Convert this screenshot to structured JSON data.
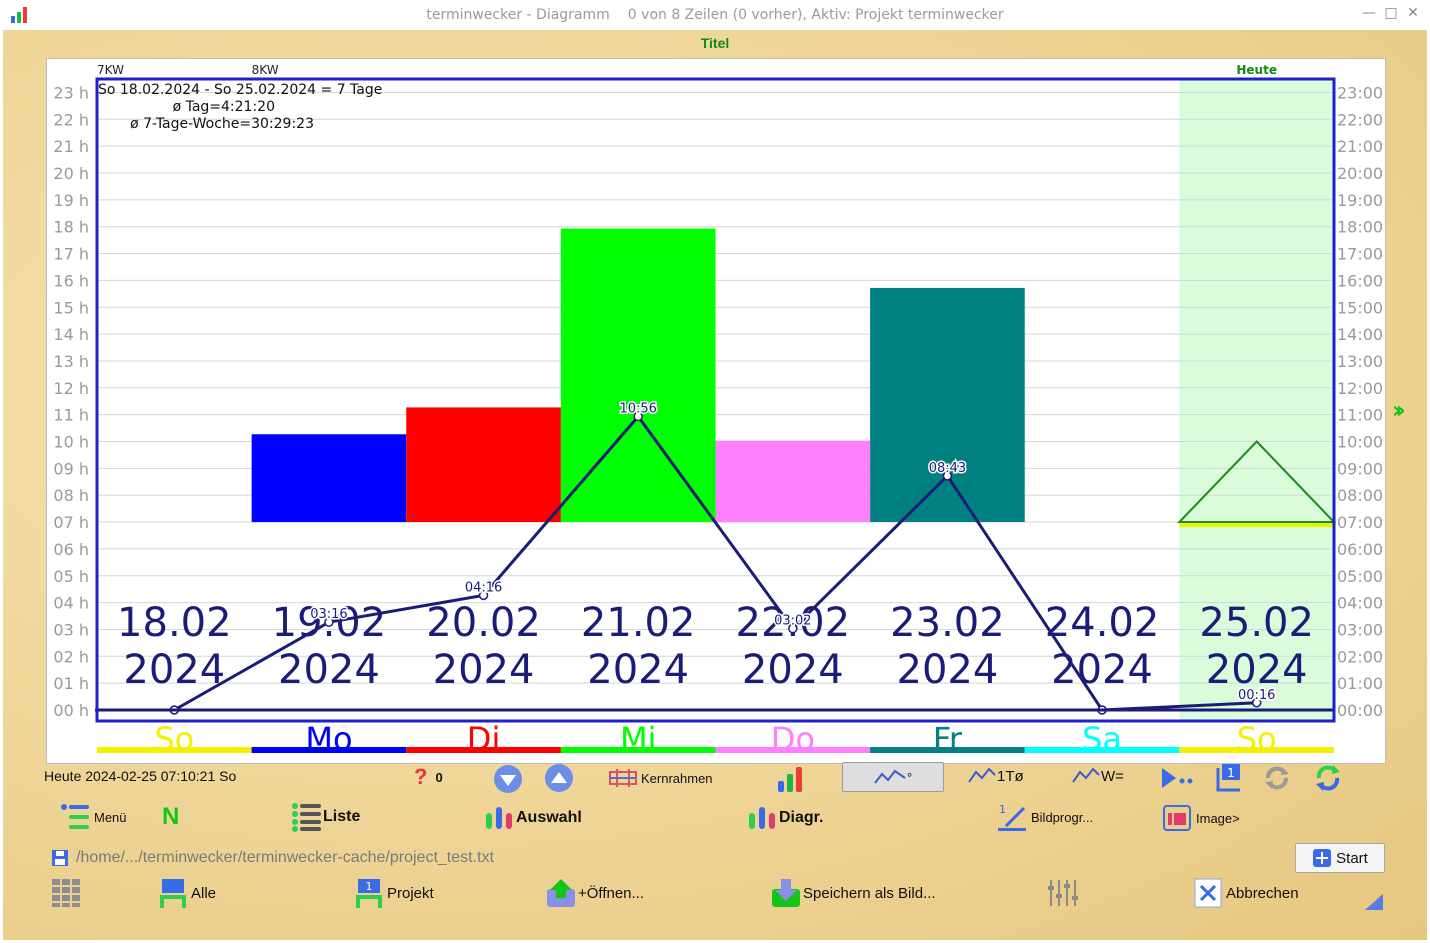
{
  "window": {
    "title": "terminwecker - Diagramm",
    "status": "0 von 8 Zeilen (0 vorher), Aktiv: Projekt terminwecker"
  },
  "colors": {
    "frame": "#1f1fd0",
    "line": "#1b1b78",
    "today_shade": "#dbfcdb",
    "title": "#128a12",
    "wood": "#efd699"
  },
  "chart_data": {
    "type": "bar",
    "title": "Titel",
    "week_labels": [
      {
        "label": "7KW",
        "day_index": 0
      },
      {
        "label": "8KW",
        "day_index": 1
      }
    ],
    "today_label": "Heute",
    "today_index": 7,
    "info_lines": [
      "So 18.02.2024 - So 25.02.2024 = 7 Tage",
      "ø Tag=4:21:20",
      "ø 7-Tage-Woche=30:29:23"
    ],
    "left_axis_ticks": [
      "00 h",
      "01 h",
      "02 h",
      "03 h",
      "04 h",
      "05 h",
      "06 h",
      "07 h",
      "08 h",
      "09 h",
      "10 h",
      "11 h",
      "12 h",
      "13 h",
      "14 h",
      "15 h",
      "16 h",
      "17 h",
      "18 h",
      "19 h",
      "20 h",
      "21 h",
      "22 h",
      "23 h"
    ],
    "right_axis_ticks": [
      "00:00",
      "01:00",
      "02:00",
      "03:00",
      "04:00",
      "05:00",
      "06:00",
      "07:00",
      "08:00",
      "09:00",
      "10:00",
      "11:00",
      "12:00",
      "13:00",
      "14:00",
      "15:00",
      "16:00",
      "17:00",
      "18:00",
      "19:00",
      "20:00",
      "21:00",
      "22:00",
      "23:00"
    ],
    "y_range": [
      0,
      24
    ],
    "days": [
      {
        "weekday": "So",
        "date": "18.02",
        "year": "2024",
        "color": "#f2f200",
        "bar": null,
        "line_value": 0.0,
        "line_label": ""
      },
      {
        "weekday": "Mo",
        "date": "19.02",
        "year": "2024",
        "color": "#0000ff",
        "bar": {
          "start": 7.0,
          "end": 10.27
        },
        "line_value": 3.27,
        "line_label": "03:16"
      },
      {
        "weekday": "Di",
        "date": "20.02",
        "year": "2024",
        "color": "#ff0000",
        "bar": {
          "start": 7.0,
          "end": 11.27
        },
        "line_value": 4.27,
        "line_label": "04:16"
      },
      {
        "weekday": "Mi",
        "date": "21.02",
        "year": "2024",
        "color": "#00ff00",
        "bar": {
          "start": 7.0,
          "end": 17.93
        },
        "line_value": 10.93,
        "line_label": "10:56"
      },
      {
        "weekday": "Do",
        "date": "22.02",
        "year": "2024",
        "color": "#ff80ff",
        "bar": {
          "start": 7.0,
          "end": 10.03
        },
        "line_value": 3.03,
        "line_label": "03:02"
      },
      {
        "weekday": "Fr",
        "date": "23.02",
        "year": "2024",
        "color": "#008080",
        "bar": {
          "start": 7.0,
          "end": 15.72
        },
        "line_value": 8.72,
        "line_label": "08:43"
      },
      {
        "weekday": "Sa",
        "date": "24.02",
        "year": "2024",
        "color": "#00ffff",
        "bar": null,
        "line_value": 0.0,
        "line_label": ""
      },
      {
        "weekday": "So",
        "date": "25.02",
        "year": "2024",
        "color": "#f2f200",
        "bar": null,
        "line_value": 0.27,
        "line_label": "00:16",
        "marker": {
          "base": 7.0,
          "apex": 10.0
        }
      }
    ]
  },
  "toolbar1": {
    "today_text": "Heute 2024-02-25 07:10:21 So",
    "count": "0",
    "kernrahmen": "Kernrahmen",
    "line_mode": "°",
    "one_t": "1Tø",
    "w_eq": "W="
  },
  "toolbar2": {
    "menu": "Menü",
    "n": "N",
    "liste": "Liste",
    "auswahl": "Auswahl",
    "diagr": "Diagr.",
    "bildprogr": "Bildprogr...",
    "image": "Image>"
  },
  "path": "/home/.../terminwecker/terminwecker-cache/project_test.txt",
  "start_label": "Start",
  "toolbar3": {
    "alle": "Alle",
    "projekt": "Projekt",
    "oeffnen": "+Öffnen...",
    "speichern": "Speichern als Bild...",
    "abbrechen": "Abbrechen"
  }
}
